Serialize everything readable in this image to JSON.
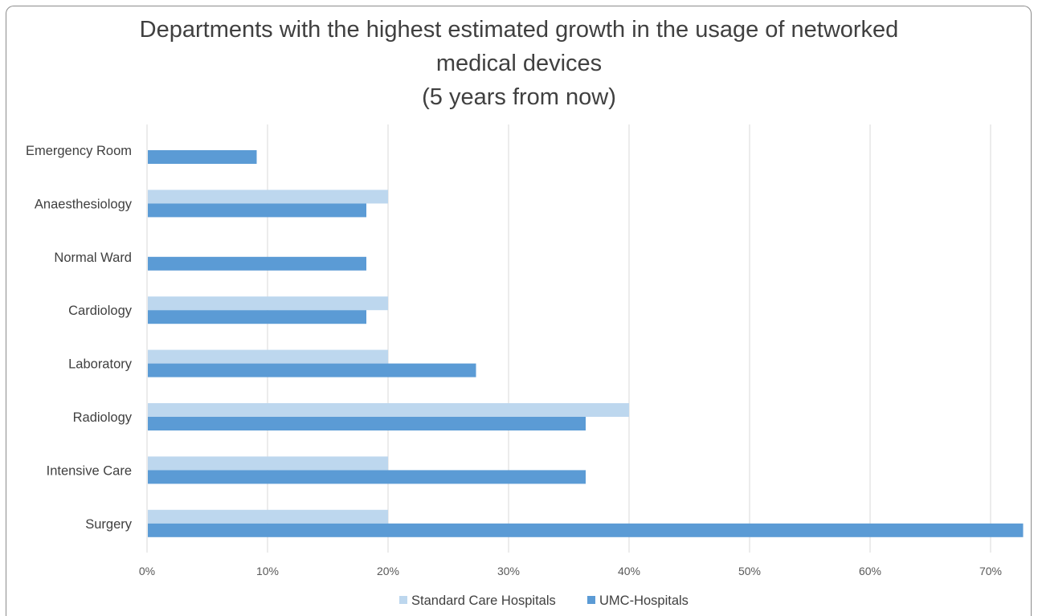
{
  "chart_data": {
    "type": "bar",
    "orientation": "horizontal",
    "title_lines": [
      "Departments with the highest estimated growth in the usage of networked",
      "medical devices",
      "(5 years from now)"
    ],
    "categories": [
      "Emergency Room",
      "Anaesthesiology",
      "Normal Ward",
      "Cardiology",
      "Laboratory",
      "Radiology",
      "Intensive Care",
      "Surgery"
    ],
    "series": [
      {
        "name": "Standard Care Hospitals",
        "color": "#bdd7ee",
        "values": [
          0,
          20,
          0,
          20,
          20,
          40,
          20,
          20
        ]
      },
      {
        "name": "UMC-Hospitals",
        "color": "#5b9bd5",
        "values": [
          9.1,
          18.2,
          18.2,
          18.2,
          27.3,
          36.4,
          36.4,
          72.7
        ]
      }
    ],
    "x_ticks": [
      "0%",
      "10%",
      "20%",
      "30%",
      "40%",
      "50%",
      "60%",
      "70%"
    ],
    "xlim": [
      0,
      72.7
    ],
    "grid": "vertical",
    "legend_position": "bottom"
  }
}
